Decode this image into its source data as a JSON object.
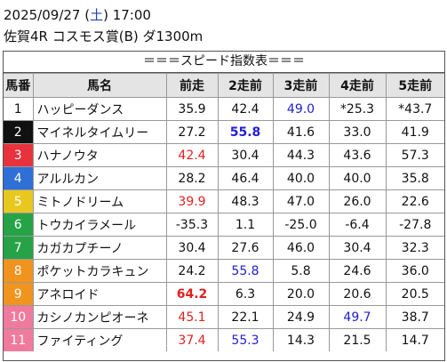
{
  "header": {
    "date": "2025/09/27",
    "weekday": "土",
    "time": "17:00",
    "race": "佐賀4R コスモス賞(B) ダ1300m"
  },
  "table": {
    "title": "＝＝＝スピード指数表＝＝＝",
    "columns": [
      "馬番",
      "馬名",
      "前走",
      "2走前",
      "3走前",
      "4走前",
      "5走前"
    ],
    "rows": [
      {
        "number": "1",
        "color": "#ffffff",
        "name": "ハッピーダンス",
        "values": [
          "35.9",
          "42.4",
          {
            "text": "49.0",
            "color": "#2020d0"
          },
          "*25.3",
          "*43.7"
        ]
      },
      {
        "number": "2",
        "color": "#111111",
        "name": "マイネルタイムリー",
        "values": [
          "27.2",
          {
            "text": "55.8",
            "color": "#2020d0",
            "bold": true
          },
          "41.6",
          "33.0",
          "41.9"
        ]
      },
      {
        "number": "3",
        "color": "#e8323c",
        "name": "ハナノウタ",
        "values": [
          {
            "text": "42.4",
            "color": "#e02020"
          },
          "30.4",
          "44.3",
          "43.6",
          "57.3"
        ]
      },
      {
        "number": "4",
        "color": "#2f6fd8",
        "name": "アルルカン",
        "values": [
          "28.2",
          "46.4",
          "40.0",
          "40.0",
          "35.8"
        ]
      },
      {
        "number": "5",
        "color": "#e8c81e",
        "name": "ミトノドリーム",
        "values": [
          {
            "text": "39.9",
            "color": "#e02020"
          },
          "48.3",
          "47.0",
          "26.0",
          "22.6"
        ]
      },
      {
        "number": "6",
        "color": "#26a346",
        "name": "トウカイラメール",
        "values": [
          "-35.3",
          "1.1",
          "-25.0",
          "-6.4",
          "-27.8"
        ]
      },
      {
        "number": "7",
        "color": "#26a346",
        "name": "カガカプチーノ",
        "values": [
          "30.4",
          "27.6",
          "46.0",
          "30.4",
          "32.3"
        ]
      },
      {
        "number": "8",
        "color": "#f0941e",
        "name": "ポケットカラキュン",
        "values": [
          "24.2",
          {
            "text": "55.8",
            "color": "#2020d0"
          },
          "5.8",
          "24.6",
          "36.0"
        ]
      },
      {
        "number": "9",
        "color": "#f0941e",
        "name": "アネロイド",
        "values": [
          {
            "text": "64.2",
            "color": "#e02020",
            "bold": true
          },
          "6.3",
          "20.0",
          "20.6",
          "20.5"
        ]
      },
      {
        "number": "10",
        "color": "#f07a9e",
        "name": "カシノカンピオーネ",
        "values": [
          {
            "text": "45.1",
            "color": "#e02020"
          },
          "22.1",
          "24.9",
          {
            "text": "49.7",
            "color": "#2020d0"
          },
          "38.7"
        ]
      },
      {
        "number": "11",
        "color": "#f07a9e",
        "name": "ファイティング",
        "values": [
          {
            "text": "37.4",
            "color": "#e02020"
          },
          {
            "text": "55.3",
            "color": "#2020d0"
          },
          "14.3",
          "21.5",
          "14.7"
        ]
      }
    ]
  }
}
